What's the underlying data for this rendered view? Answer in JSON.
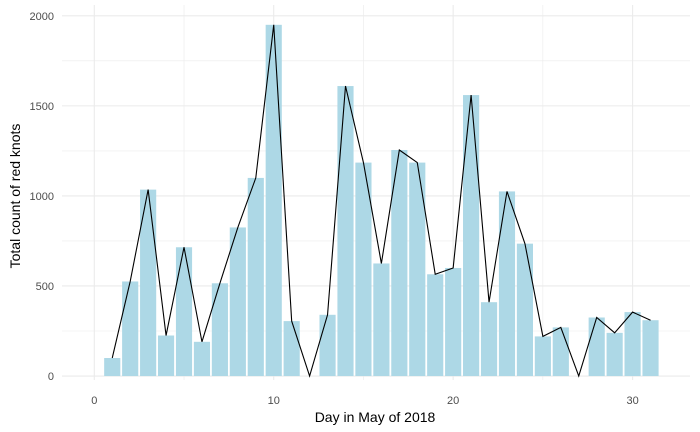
{
  "chart_data": {
    "type": "bar",
    "title": "",
    "xlabel": "Day in May of 2018",
    "ylabel": "Total count of red knots",
    "xlim": [
      -1.8,
      33.2
    ],
    "ylim": [
      -22,
      2060
    ],
    "xticks": [
      0,
      10,
      20,
      30
    ],
    "xtick_labels": [
      "0",
      "10",
      "20",
      "30"
    ],
    "yticks": [
      0,
      500,
      1000,
      1500,
      2000
    ],
    "ytick_labels": [
      "0",
      "500",
      "1000",
      "1500",
      "2000"
    ],
    "grid": true,
    "legend": "none",
    "bar_color": "#add8e6",
    "line_color": "#000000",
    "grid_color": "#ebebeb",
    "x": [
      1,
      2,
      3,
      4,
      5,
      6,
      7,
      8,
      9,
      10,
      11,
      12,
      13,
      14,
      15,
      16,
      17,
      18,
      19,
      20,
      21,
      22,
      23,
      24,
      25,
      26,
      27,
      28,
      29,
      30,
      31
    ],
    "values": [
      100,
      525,
      1035,
      225,
      715,
      190,
      515,
      825,
      1100,
      1950,
      305,
      0,
      340,
      1610,
      1185,
      625,
      1255,
      1185,
      565,
      600,
      1560,
      410,
      1025,
      735,
      220,
      270,
      0,
      325,
      240,
      355,
      310
    ],
    "line_values": [
      100,
      525,
      1035,
      225,
      715,
      190,
      515,
      825,
      1100,
      1950,
      305,
      0,
      340,
      1610,
      1185,
      625,
      1255,
      1185,
      565,
      600,
      1560,
      410,
      1025,
      735,
      220,
      270,
      0,
      325,
      240,
      355,
      310
    ]
  }
}
